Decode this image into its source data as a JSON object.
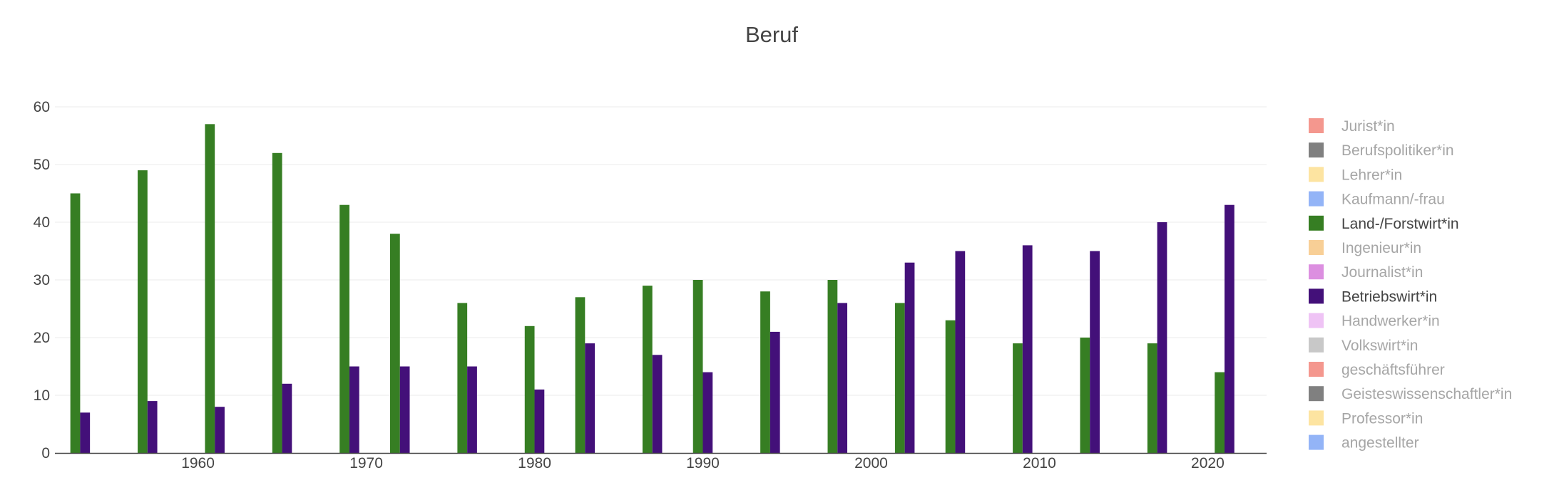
{
  "chart_data": {
    "type": "bar",
    "title": "Beruf",
    "xlabel": "",
    "ylabel": "",
    "ylim": [
      0,
      60
    ],
    "xlim": [
      1951.5,
      2023.5
    ],
    "yticks": [
      0,
      10,
      20,
      30,
      40,
      50,
      60
    ],
    "xticks": [
      1960,
      1970,
      1980,
      1990,
      2000,
      2010,
      2020
    ],
    "grid": true,
    "legend_position": "right",
    "series": [
      {
        "name": "Jurist*in",
        "color": "#f4978e",
        "visible": false,
        "x": [],
        "values": []
      },
      {
        "name": "Berufspolitiker*in",
        "color": "#808080",
        "visible": false,
        "x": [],
        "values": []
      },
      {
        "name": "Lehrer*in",
        "color": "#fde4a1",
        "visible": false,
        "x": [],
        "values": []
      },
      {
        "name": "Kaufmann/-frau",
        "color": "#93b4f7",
        "visible": false,
        "x": [],
        "values": []
      },
      {
        "name": "Land-/Forstwirt*in",
        "color": "#367e23",
        "visible": true,
        "x": [
          1953,
          1957,
          1961,
          1965,
          1969,
          1972,
          1976,
          1980,
          1983,
          1987,
          1990,
          1994,
          1998,
          2002,
          2005,
          2009,
          2013,
          2017,
          2021
        ],
        "values": [
          45,
          49,
          57,
          52,
          43,
          38,
          26,
          22,
          27,
          29,
          30,
          28,
          30,
          26,
          23,
          19,
          20,
          19,
          14
        ]
      },
      {
        "name": "Ingenieur*in",
        "color": "#f8cf96",
        "visible": false,
        "x": [],
        "values": []
      },
      {
        "name": "Journalist*in",
        "color": "#dc8fe0",
        "visible": false,
        "x": [],
        "values": []
      },
      {
        "name": "Betriebswirt*in",
        "color": "#431079",
        "visible": true,
        "x": [
          1953,
          1957,
          1961,
          1965,
          1969,
          1972,
          1976,
          1980,
          1983,
          1987,
          1990,
          1994,
          1998,
          2002,
          2005,
          2009,
          2013,
          2017,
          2021
        ],
        "values": [
          7,
          9,
          8,
          12,
          15,
          15,
          15,
          11,
          19,
          17,
          14,
          21,
          26,
          33,
          35,
          36,
          35,
          40,
          43
        ]
      },
      {
        "name": "Handwerker*in",
        "color": "#efc3f5",
        "visible": false,
        "x": [],
        "values": []
      },
      {
        "name": "Volkswirt*in",
        "color": "#c8c8c8",
        "visible": false,
        "x": [],
        "values": []
      },
      {
        "name": "geschäftsführer",
        "color": "#f4978e",
        "visible": false,
        "x": [],
        "values": []
      },
      {
        "name": "Geisteswissenschaftler*in",
        "color": "#808080",
        "visible": false,
        "x": [],
        "values": []
      },
      {
        "name": "Professor*in",
        "color": "#fde4a1",
        "visible": false,
        "x": [],
        "values": []
      },
      {
        "name": "angestellter",
        "color": "#93b4f7",
        "visible": false,
        "x": [],
        "values": []
      }
    ]
  },
  "colors": {
    "text_active": "#444444",
    "text_inactive": "#a6a6a6",
    "grid": "#ebebeb",
    "axis": "#444444"
  }
}
